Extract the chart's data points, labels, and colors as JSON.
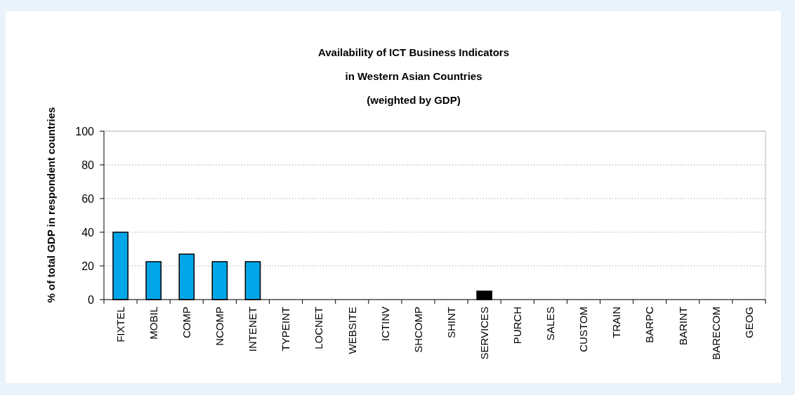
{
  "chart_data": {
    "type": "bar",
    "title": "Availability of ICT Business Indicators\nin Western Asian Countries\n(weighted by GDP)",
    "ylabel": "% of total GDP in respondent countries",
    "categories": [
      "FIXTEL",
      "MOBIL",
      "COMP",
      "NCOMP",
      "INTENET",
      "TYPEINT",
      "LOCNET",
      "WEBSITE",
      "ICTINV",
      "SHCOMP",
      "SHINT",
      "SERVICES",
      "PURCH",
      "SALES",
      "CUSTOM",
      "TRAIN",
      "BARPC",
      "BARINT",
      "BARECOM",
      "GEOG"
    ],
    "values": [
      40,
      22.5,
      27,
      22.5,
      22.5,
      0,
      0,
      0,
      0,
      0,
      0,
      5,
      0,
      0,
      0,
      0,
      0,
      0,
      0,
      0
    ],
    "colors": [
      "#00a6e8",
      "#00a6e8",
      "#00a6e8",
      "#00a6e8",
      "#00a6e8",
      "#00a6e8",
      "#00a6e8",
      "#00a6e8",
      "#00a6e8",
      "#00a6e8",
      "#00a6e8",
      "#000000",
      "#00a6e8",
      "#00a6e8",
      "#00a6e8",
      "#00a6e8",
      "#00a6e8",
      "#00a6e8",
      "#00a6e8",
      "#00a6e8"
    ],
    "ylim": [
      0,
      100
    ],
    "yticks": [
      0,
      20,
      40,
      60,
      80,
      100
    ],
    "grid": "y"
  }
}
